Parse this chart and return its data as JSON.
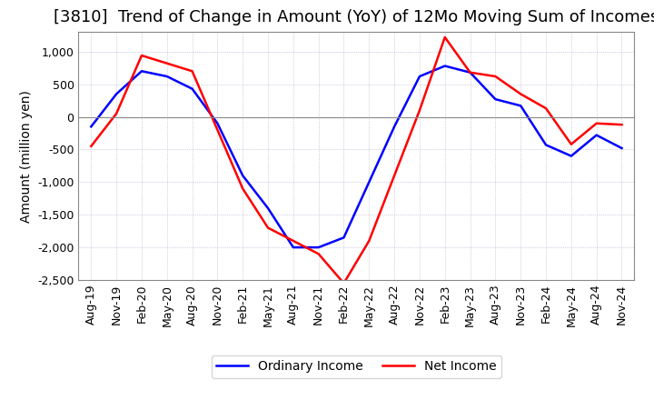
{
  "title": "[3810]  Trend of Change in Amount (YoY) of 12Mo Moving Sum of Incomes",
  "ylabel": "Amount (million yen)",
  "ylim": [
    -2500,
    1300
  ],
  "yticks": [
    -2500,
    -2000,
    -1500,
    -1000,
    -500,
    0,
    500,
    1000
  ],
  "x_labels": [
    "Aug-19",
    "Nov-19",
    "Feb-20",
    "May-20",
    "Aug-20",
    "Nov-20",
    "Feb-21",
    "May-21",
    "Aug-21",
    "Nov-21",
    "Feb-22",
    "May-22",
    "Aug-22",
    "Nov-22",
    "Feb-23",
    "May-23",
    "Aug-23",
    "Nov-23",
    "Feb-24",
    "May-24",
    "Aug-24",
    "Nov-24"
  ],
  "ordinary_income": [
    -150,
    350,
    700,
    620,
    430,
    -100,
    -900,
    -1400,
    -2000,
    -2000,
    -1850,
    -1000,
    -150,
    620,
    780,
    680,
    270,
    170,
    -430,
    -600,
    -280,
    -480
  ],
  "net_income": [
    -450,
    50,
    940,
    820,
    700,
    -200,
    -1100,
    -1700,
    -1900,
    -2100,
    -2550,
    -1900,
    -900,
    100,
    1220,
    680,
    620,
    350,
    130,
    -420,
    -100,
    -120
  ],
  "ordinary_color": "#0000ff",
  "net_color": "#ff0000",
  "background_color": "#ffffff",
  "grid_color": "#aaaacc",
  "zero_line_color": "#888888",
  "legend_ordinary": "Ordinary Income",
  "legend_net": "Net Income",
  "title_fontsize": 13,
  "axis_fontsize": 9,
  "legend_fontsize": 10
}
